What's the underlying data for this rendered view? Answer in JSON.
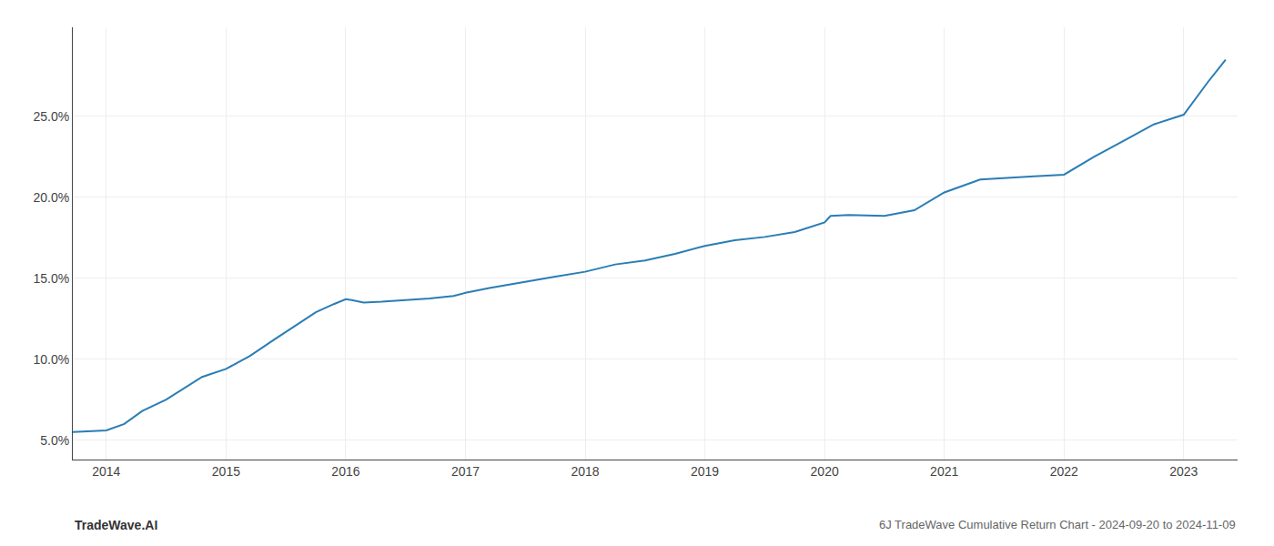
{
  "chart_data": {
    "type": "line",
    "title": "6J TradeWave Cumulative Return Chart - 2024-09-20 to 2024-11-09",
    "annotations": [
      "TradeWave.AI"
    ],
    "x": [
      2013.72,
      2014.0,
      2014.15,
      2014.3,
      2014.5,
      2014.65,
      2014.8,
      2015.0,
      2015.2,
      2015.4,
      2015.6,
      2015.75,
      2015.9,
      2016.0,
      2016.05,
      2016.15,
      2016.3,
      2016.5,
      2016.7,
      2016.9,
      2017.0,
      2017.2,
      2017.5,
      2017.75,
      2018.0,
      2018.25,
      2018.5,
      2018.75,
      2019.0,
      2019.25,
      2019.5,
      2019.75,
      2020.0,
      2020.05,
      2020.2,
      2020.5,
      2020.75,
      2021.0,
      2021.3,
      2021.5,
      2021.75,
      2022.0,
      2022.25,
      2022.5,
      2022.75,
      2023.0,
      2023.2,
      2023.35
    ],
    "values": [
      5.5,
      5.6,
      6.0,
      6.8,
      7.5,
      8.2,
      8.9,
      9.4,
      10.2,
      11.2,
      12.2,
      12.9,
      13.4,
      13.7,
      13.65,
      13.5,
      13.55,
      13.65,
      13.75,
      13.9,
      14.1,
      14.4,
      14.8,
      15.1,
      15.4,
      15.85,
      16.1,
      16.5,
      17.0,
      17.35,
      17.55,
      17.85,
      18.45,
      18.85,
      18.9,
      18.85,
      19.2,
      20.3,
      21.1,
      21.2,
      21.3,
      21.4,
      22.5,
      23.5,
      24.5,
      25.1,
      27.1,
      28.5
    ],
    "color": "#2a7db5",
    "xlim": [
      2013.72,
      2023.45
    ],
    "ylim": [
      3.8,
      30.5
    ],
    "xticks": [
      2014,
      2015,
      2016,
      2017,
      2018,
      2019,
      2020,
      2021,
      2022,
      2023
    ],
    "yticks": [
      {
        "value": 5.0,
        "label": "5.0%"
      },
      {
        "value": 10.0,
        "label": "10.0%"
      },
      {
        "value": 15.0,
        "label": "15.0%"
      },
      {
        "value": 20.0,
        "label": "20.0%"
      },
      {
        "value": 25.0,
        "label": "25.0%"
      }
    ],
    "grid": true
  }
}
